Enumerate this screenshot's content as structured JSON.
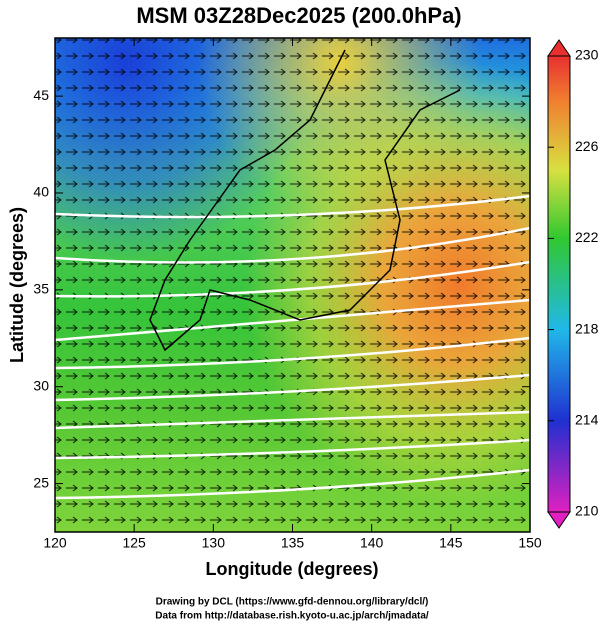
{
  "chart_data": {
    "type": "map",
    "title": "MSM 03Z28Dec2025 (200.0hPa)",
    "x_label": "Longitude (degrees)",
    "y_label": "Latitude  (degrees)",
    "xlim": [
      120,
      150
    ],
    "xticks": [
      120,
      125,
      130,
      135,
      140,
      145,
      150
    ],
    "ylim": [
      22.5,
      48
    ],
    "yticks": [
      25,
      30,
      35,
      40,
      45
    ],
    "colorbar": {
      "lim": [
        210,
        230
      ],
      "ticks": [
        210,
        214,
        218,
        222,
        226,
        230
      ]
    }
  },
  "footer": [
    "Drawing by DCL (https://www.gfd-dennou.org/library/dcl/)",
    "Data from http://database.rish.kyoto-u.ac.jp/arch/jmadata/"
  ]
}
